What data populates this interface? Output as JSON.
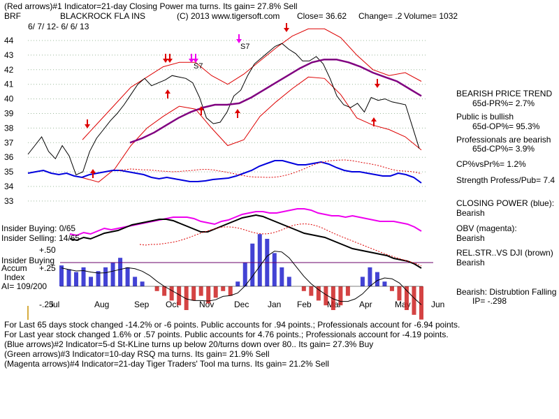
{
  "header": {
    "line1": "(Red arrows)#1 Indicator=21-day Closing Power ma turns.  Its gain= 27.8% Sell",
    "symbol": "BRF",
    "name": "BLACKROCK FLA INS",
    "copyright": "(C) 2013 www.tigersoft.com",
    "close": "Close=  36.62",
    "change": "Change= .2",
    "volume": "Volume= 1032",
    "daterange": "6/ 7/ 12- 6/ 6/ 13"
  },
  "chart_data": {
    "type": "line",
    "title": "BLACKROCK FLA INS (BRF) daily price with bands, moving average and indicators",
    "price_axis": {
      "ticks": [
        44,
        43,
        42,
        41,
        40,
        39,
        38,
        37,
        36,
        35,
        34,
        33
      ],
      "ylim": [
        32.8,
        44.6
      ]
    },
    "months": [
      "Jul",
      "Aug",
      "Sep",
      "Oct",
      "Nov",
      "Dec",
      "Jan",
      "Feb",
      "Mar",
      "Apr",
      "May",
      "Jun"
    ],
    "price_close": [
      36.2,
      36.8,
      37.4,
      36.4,
      35.9,
      36.8,
      36.1,
      34.8,
      35.0,
      36.4,
      37.3,
      37.9,
      38.5,
      39.0,
      39.6,
      40.3,
      41.0,
      41.4,
      40.9,
      41.1,
      41.3,
      41.6,
      41.5,
      41.4,
      41.1,
      40.1,
      38.7,
      38.3,
      38.4,
      39.1,
      40.2,
      40.6,
      41.6,
      42.4,
      42.8,
      43.2,
      43.6,
      43.8,
      43.4,
      43.1,
      42.6,
      42.6,
      42.9,
      42.4,
      41.4,
      40.2,
      39.6,
      39.4,
      39.7,
      39.1,
      40.1,
      39.9,
      40.0,
      39.8,
      39.7,
      39.6,
      38.1,
      36.6
    ],
    "ma_purple": [
      37.0,
      37.3,
      37.7,
      38.2,
      38.7,
      39.1,
      39.4,
      39.6,
      39.6,
      39.7,
      40.1,
      40.6,
      41.1,
      41.6,
      42.1,
      42.5,
      42.7,
      42.7,
      42.5,
      42.2,
      41.8,
      41.5,
      41.2,
      40.7,
      40.2
    ],
    "upper_band": [
      37.2,
      38.4,
      39.6,
      40.8,
      41.5,
      42.2,
      42.5,
      42.5,
      41.6,
      41.0,
      41.7,
      42.6,
      43.5,
      44.3,
      44.8,
      44.8,
      44.2,
      43.0,
      42.0,
      41.6,
      41.8,
      41.2
    ],
    "lower_band": [
      34.6,
      34.3,
      35.2,
      36.8,
      38.0,
      38.8,
      39.5,
      39.3,
      38.0,
      36.8,
      37.2,
      38.8,
      39.8,
      40.7,
      41.5,
      41.4,
      40.3,
      38.7,
      38.2,
      37.9,
      37.4,
      36.5
    ],
    "signal_arrows": [
      {
        "color": "red",
        "dir": "down",
        "x": 125,
        "y": 180
      },
      {
        "color": "red",
        "dir": "up",
        "x": 133,
        "y": 246
      },
      {
        "color": "red",
        "dir": "down",
        "x": 237,
        "y": 86
      },
      {
        "color": "red",
        "dir": "down",
        "x": 243,
        "y": 86
      },
      {
        "color": "red",
        "dir": "up",
        "x": 240,
        "y": 132
      },
      {
        "color": "red",
        "dir": "up",
        "x": 288,
        "y": 156
      },
      {
        "color": "red",
        "dir": "up",
        "x": 340,
        "y": 160
      },
      {
        "color": "red",
        "dir": "down",
        "x": 410,
        "y": 42
      },
      {
        "color": "red",
        "dir": "down",
        "x": 540,
        "y": 122
      },
      {
        "color": "red",
        "dir": "up",
        "x": 535,
        "y": 172
      },
      {
        "color": "magenta",
        "dir": "down",
        "x": 274,
        "y": 86
      },
      {
        "color": "magenta",
        "dir": "down",
        "x": 280,
        "y": 86
      },
      {
        "color": "magenta",
        "dir": "down",
        "x": 342,
        "y": 58
      }
    ],
    "s7_markers": [
      "S7",
      "S7"
    ],
    "closing_power_blue": [
      42,
      44,
      46,
      42,
      40,
      42,
      38,
      36,
      40,
      42,
      44,
      46,
      46,
      44,
      42,
      40,
      36,
      34,
      36,
      34,
      32,
      30,
      30,
      31,
      33,
      34,
      35,
      38,
      42,
      46,
      52,
      56,
      60,
      60,
      57,
      54,
      54,
      56,
      58,
      55,
      50,
      46,
      44,
      44,
      42,
      40,
      38,
      38,
      42,
      40,
      36,
      28
    ],
    "opct_magenta": [
      10,
      8,
      12,
      10,
      14,
      18,
      16,
      18,
      20,
      22,
      24,
      26,
      28,
      30,
      32,
      34,
      34,
      34,
      32,
      28,
      26,
      24,
      28,
      30,
      34,
      38,
      40,
      42,
      42,
      40,
      40,
      42,
      44,
      46,
      46,
      44,
      40,
      38,
      36,
      36,
      34,
      36,
      34,
      32,
      30,
      28,
      28,
      28,
      26,
      24,
      20,
      14
    ],
    "relstr_black": [
      8,
      6,
      10,
      8,
      12,
      16,
      18,
      20,
      24,
      28,
      30,
      32,
      34,
      36,
      36,
      34,
      30,
      26,
      22,
      18,
      18,
      22,
      26,
      30,
      34,
      38,
      40,
      42,
      40,
      36,
      32,
      28,
      24,
      20,
      16,
      14,
      12,
      10,
      6,
      2,
      -2,
      -6,
      -8,
      -10,
      -12,
      -14,
      -16,
      -20,
      -22,
      -24,
      -28,
      -34
    ],
    "accum_index": {
      "title": "Insider Buying Accum Index",
      "levels": [
        "+.50",
        "+.25",
        "-.25"
      ],
      "values": [
        0.22,
        0.18,
        0.15,
        0.2,
        0.1,
        0.16,
        0.2,
        0.25,
        0.3,
        0.2,
        0.1,
        0.05,
        0.0,
        -0.05,
        -0.1,
        -0.15,
        -0.2,
        -0.25,
        -0.15,
        -0.1,
        -0.18,
        -0.12,
        -0.05,
        -0.1,
        0.05,
        0.25,
        0.45,
        0.55,
        0.5,
        0.35,
        0.2,
        0.1,
        0.0,
        -0.05,
        -0.1,
        -0.15,
        -0.2,
        -0.25,
        -0.2,
        -0.1,
        0.0,
        0.1,
        0.2,
        0.15,
        0.05,
        -0.05,
        -0.15,
        -0.25,
        -0.3,
        -0.35
      ]
    }
  },
  "left_labels": {
    "insider_buying": "Insider Buying: 0/65",
    "insider_selling": "Insider Selling: 14/65",
    "plus50": "+.50",
    "ins_buying2": "Insider Buying",
    "accum": "Accum",
    "plus25": "+.25",
    "index": "Index",
    "ai": "AI= 109/200",
    "minus25": "-.25"
  },
  "right_panel": {
    "trend_title": "BEARISH PRICE TREND",
    "pr": "65d-PR%= 2.7%",
    "public_title": "Public is bullish",
    "op": "65d-OP%= 95.3%",
    "pros_title": "Professionals are bearish",
    "cp": "65d-CP%= 3.9%",
    "cpvspr": "CP%vsPr%=  1.2%",
    "strength": "Strength Profess/Pub= 7.4",
    "closing_power": "CLOSING POWER (blue):",
    "cp_val": "Bearish",
    "obv": "OBV (magenta):",
    "obv_val": "Bearish",
    "relstr": "REL.STR..VS DJI (brown)",
    "relstr_val": "Bearish",
    "bearish_dist": "Bearish:  Distrubtion Falling",
    "ip": "IP= -.298"
  },
  "footer": {
    "line1": "For Last 65 days stock changed -14.2% or -6 points.  Public accounts for  .94 points.;  Professionals account for -6.94 points.",
    "line2": "For Last year stock changed  1.6% or  .57 points.  Public accounts for  4.76 points.;  Professionals account for -4.19 points.",
    "line3": "(Blue arrows)#2 Indicator=5-d St-KLine turns up below 20/turns down over 80..  Its gain= 27.3% Buy",
    "line4": "(Green arrows)#3 Indicator=10-day RSQ ma turns.  Its gain= 21.9% Sell",
    "line5": "(Magenta arrows)#4 Indicator=21-day Tiger Traders' Tool ma turns.  Its gain= 21.2% Sell"
  }
}
